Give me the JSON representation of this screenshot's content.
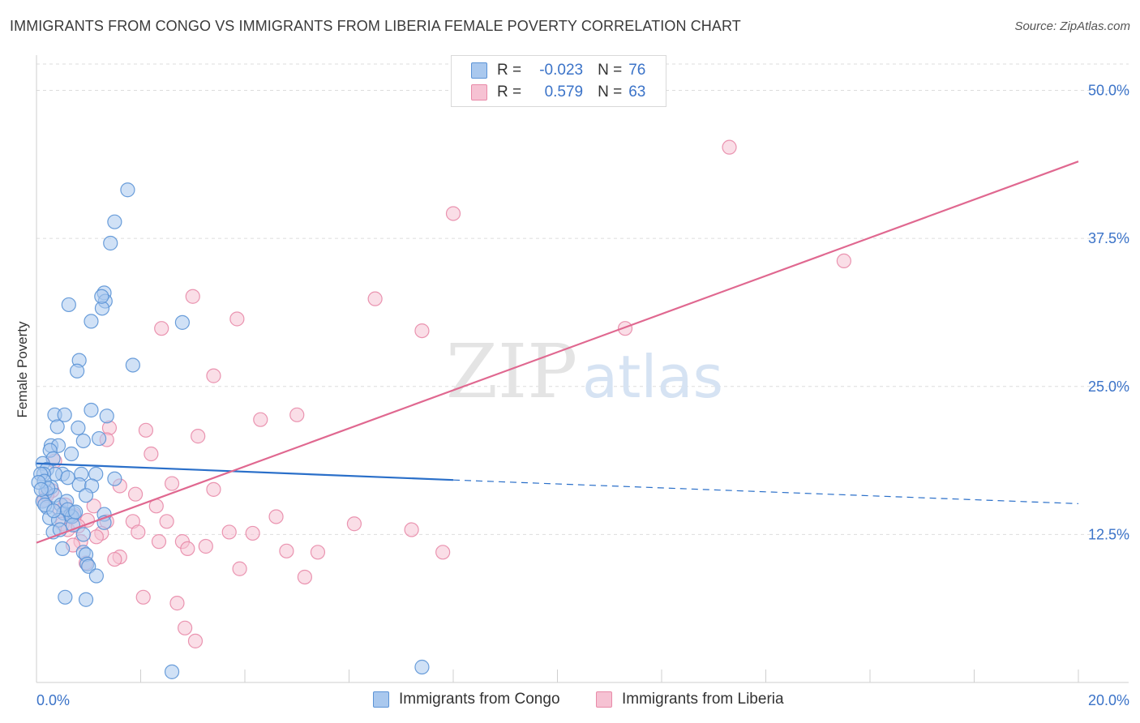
{
  "header": {
    "title": "IMMIGRANTS FROM CONGO VS IMMIGRANTS FROM LIBERIA FEMALE POVERTY CORRELATION CHART",
    "source": "Source: ZipAtlas.com"
  },
  "watermark": {
    "zip": "ZIP",
    "atlas": "atlas"
  },
  "legend": {
    "rows": [
      {
        "r_label": "R =",
        "r_value": "-0.023",
        "n_label": "N =",
        "n_value": "76"
      },
      {
        "r_label": "R =",
        "r_value": "0.579",
        "n_label": "N =",
        "n_value": "63"
      }
    ]
  },
  "bottom_legend": {
    "congo": "Immigrants from Congo",
    "liberia": "Immigrants from Liberia"
  },
  "colors": {
    "congo_fill": "#a9c8ee",
    "congo_stroke": "#5b93d6",
    "congo_line": "#2a6fc9",
    "liberia_fill": "#f6c2d3",
    "liberia_stroke": "#e88aa8",
    "liberia_line": "#e06890",
    "axis_text": "#3b73c8",
    "grid": "#dddddd"
  },
  "chart_data": {
    "type": "scatter",
    "title": "IMMIGRANTS FROM CONGO VS IMMIGRANTS FROM LIBERIA FEMALE POVERTY CORRELATION CHART",
    "xlabel": "",
    "ylabel": "Female Poverty",
    "xlim": [
      0,
      20
    ],
    "ylim": [
      0,
      52.5
    ],
    "x_tick_labels": [
      "0.0%",
      "20.0%"
    ],
    "y_ticks": [
      12.5,
      25.0,
      37.5,
      50.0
    ],
    "y_tick_labels": [
      "12.5%",
      "25.0%",
      "37.5%",
      "50.0%"
    ],
    "grid": true,
    "legend_position": "top-center",
    "series": [
      {
        "name": "Immigrants from Congo",
        "R": -0.023,
        "N": 76,
        "trend": {
          "x0": 0,
          "y0": 18.5,
          "x1": 8,
          "y1": 17.1,
          "dashed_to_x": 20,
          "dashed_to_y": 15.1
        },
        "points": [
          [
            1.75,
            41.6
          ],
          [
            1.5,
            38.9
          ],
          [
            1.42,
            37.1
          ],
          [
            1.3,
            32.9
          ],
          [
            1.32,
            32.2
          ],
          [
            1.26,
            31.6
          ],
          [
            0.62,
            31.9
          ],
          [
            1.05,
            30.5
          ],
          [
            1.25,
            32.6
          ],
          [
            2.8,
            30.4
          ],
          [
            0.82,
            27.2
          ],
          [
            0.78,
            26.3
          ],
          [
            1.85,
            26.8
          ],
          [
            1.05,
            23.0
          ],
          [
            0.35,
            22.6
          ],
          [
            0.54,
            22.6
          ],
          [
            1.35,
            22.5
          ],
          [
            0.4,
            21.6
          ],
          [
            0.8,
            21.5
          ],
          [
            1.2,
            20.6
          ],
          [
            0.9,
            20.4
          ],
          [
            0.28,
            20.0
          ],
          [
            0.42,
            20.0
          ],
          [
            0.26,
            19.6
          ],
          [
            0.67,
            19.3
          ],
          [
            0.32,
            18.9
          ],
          [
            0.12,
            18.5
          ],
          [
            0.2,
            18.0
          ],
          [
            0.5,
            17.6
          ],
          [
            0.36,
            17.6
          ],
          [
            0.14,
            17.6
          ],
          [
            0.08,
            17.6
          ],
          [
            0.6,
            17.3
          ],
          [
            0.86,
            17.6
          ],
          [
            1.14,
            17.6
          ],
          [
            1.5,
            17.2
          ],
          [
            0.28,
            16.5
          ],
          [
            0.82,
            16.7
          ],
          [
            1.06,
            16.6
          ],
          [
            0.18,
            16.1
          ],
          [
            0.35,
            15.8
          ],
          [
            0.95,
            15.8
          ],
          [
            0.12,
            15.3
          ],
          [
            0.47,
            15.0
          ],
          [
            0.2,
            14.8
          ],
          [
            0.52,
            14.3
          ],
          [
            0.65,
            14.1
          ],
          [
            0.72,
            14.3
          ],
          [
            0.25,
            13.9
          ],
          [
            0.68,
            14.0
          ],
          [
            1.3,
            14.2
          ],
          [
            0.42,
            13.7
          ],
          [
            1.3,
            13.5
          ],
          [
            0.7,
            13.3
          ],
          [
            0.32,
            12.7
          ],
          [
            0.45,
            12.9
          ],
          [
            0.9,
            12.5
          ],
          [
            0.5,
            11.3
          ],
          [
            0.9,
            11.0
          ],
          [
            0.95,
            10.8
          ],
          [
            0.97,
            10.0
          ],
          [
            1.0,
            9.8
          ],
          [
            1.15,
            9.0
          ],
          [
            0.55,
            7.2
          ],
          [
            0.95,
            7.0
          ],
          [
            2.6,
            0.9
          ],
          [
            7.4,
            1.3
          ],
          [
            0.15,
            17.0
          ],
          [
            0.22,
            16.4
          ],
          [
            0.58,
            15.3
          ],
          [
            0.04,
            16.9
          ],
          [
            0.09,
            16.3
          ],
          [
            0.16,
            15.0
          ],
          [
            0.33,
            14.5
          ],
          [
            0.6,
            14.6
          ],
          [
            0.75,
            14.4
          ]
        ]
      },
      {
        "name": "Immigrants from Liberia",
        "R": 0.579,
        "N": 63,
        "trend": {
          "x0": 0,
          "y0": 11.8,
          "x1": 20,
          "y1": 44.0
        },
        "points": [
          [
            13.3,
            45.2
          ],
          [
            8.0,
            39.6
          ],
          [
            15.5,
            35.6
          ],
          [
            3.0,
            32.6
          ],
          [
            6.5,
            32.4
          ],
          [
            3.85,
            30.7
          ],
          [
            2.4,
            29.9
          ],
          [
            7.4,
            29.7
          ],
          [
            11.3,
            29.9
          ],
          [
            3.4,
            25.9
          ],
          [
            5.0,
            22.6
          ],
          [
            4.3,
            22.2
          ],
          [
            2.1,
            21.3
          ],
          [
            3.1,
            20.8
          ],
          [
            1.4,
            21.5
          ],
          [
            1.35,
            20.5
          ],
          [
            2.2,
            19.3
          ],
          [
            0.35,
            18.7
          ],
          [
            2.6,
            16.8
          ],
          [
            1.6,
            16.6
          ],
          [
            3.4,
            16.3
          ],
          [
            1.9,
            15.9
          ],
          [
            2.3,
            14.9
          ],
          [
            1.1,
            14.9
          ],
          [
            0.55,
            15.0
          ],
          [
            0.15,
            15.4
          ],
          [
            4.6,
            14.0
          ],
          [
            6.1,
            13.4
          ],
          [
            7.2,
            12.9
          ],
          [
            2.5,
            13.6
          ],
          [
            1.35,
            13.6
          ],
          [
            1.85,
            13.6
          ],
          [
            0.98,
            13.7
          ],
          [
            0.72,
            14.1
          ],
          [
            0.5,
            13.4
          ],
          [
            3.7,
            12.7
          ],
          [
            4.15,
            12.6
          ],
          [
            1.25,
            12.6
          ],
          [
            1.95,
            12.7
          ],
          [
            0.85,
            11.9
          ],
          [
            2.35,
            11.9
          ],
          [
            2.8,
            11.9
          ],
          [
            2.9,
            11.3
          ],
          [
            3.25,
            11.5
          ],
          [
            4.8,
            11.1
          ],
          [
            5.4,
            11.0
          ],
          [
            7.8,
            11.0
          ],
          [
            1.6,
            10.6
          ],
          [
            1.5,
            10.4
          ],
          [
            0.95,
            10.1
          ],
          [
            0.7,
            11.6
          ],
          [
            3.9,
            9.6
          ],
          [
            5.15,
            8.9
          ],
          [
            2.05,
            7.2
          ],
          [
            2.7,
            6.7
          ],
          [
            2.85,
            4.6
          ],
          [
            3.05,
            3.5
          ],
          [
            0.3,
            16.2
          ],
          [
            0.45,
            14.5
          ],
          [
            0.2,
            15.8
          ],
          [
            0.6,
            12.9
          ],
          [
            1.15,
            12.3
          ],
          [
            0.8,
            13.2
          ]
        ]
      }
    ]
  }
}
